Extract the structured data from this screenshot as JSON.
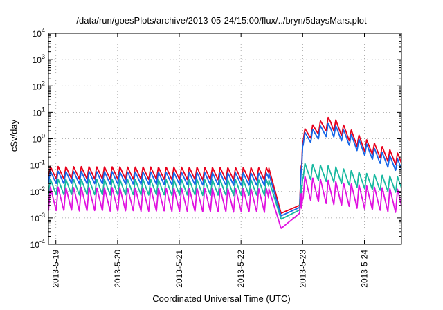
{
  "chart_data": {
    "type": "line",
    "title": "/data/run/goesPlots/archive/2013-05-24/15:00/flux/../bryn/5daysMars.plot",
    "xlabel": "Coordinated Universal Time (UTC)",
    "ylabel": "cSv/day",
    "yscale": "log",
    "ylim": [
      0.0001,
      10000
    ],
    "xlim_days": [
      -0.12,
      5.6
    ],
    "grid": true,
    "y_ticks": [
      {
        "base": "10",
        "exp": "-4",
        "value": 0.0001
      },
      {
        "base": "10",
        "exp": "-3",
        "value": 0.001
      },
      {
        "base": "10",
        "exp": "-2",
        "value": 0.01
      },
      {
        "base": "10",
        "exp": "-1",
        "value": 0.1
      },
      {
        "base": "10",
        "exp": "0",
        "value": 1
      },
      {
        "base": "10",
        "exp": "1",
        "value": 10
      },
      {
        "base": "10",
        "exp": "2",
        "value": 100
      },
      {
        "base": "10",
        "exp": "3",
        "value": 1000
      },
      {
        "base": "10",
        "exp": "4",
        "value": 10000
      }
    ],
    "x_ticks": [
      {
        "label": "2013-5-19",
        "day": 0
      },
      {
        "label": "2013-5-20",
        "day": 1
      },
      {
        "label": "2013-5-21",
        "day": 2
      },
      {
        "label": "2013-5-22",
        "day": 3
      },
      {
        "label": "2013-5-23",
        "day": 4
      },
      {
        "label": "2013-5-24",
        "day": 5
      }
    ],
    "series": [
      {
        "color": "#e8001c",
        "base": [
          [
            -0.12,
            0.09
          ],
          [
            3.45,
            0.08
          ],
          [
            3.65,
            0.0015
          ],
          [
            3.95,
            0.003
          ],
          [
            4.0,
            2.2
          ],
          [
            4.3,
            5
          ],
          [
            4.45,
            7
          ],
          [
            4.7,
            3
          ],
          [
            5.0,
            1.0
          ],
          [
            5.3,
            0.5
          ],
          [
            5.6,
            0.25
          ]
        ],
        "depth": 3.0
      },
      {
        "color": "#1566e8",
        "base": [
          [
            -0.12,
            0.06
          ],
          [
            3.45,
            0.05
          ],
          [
            3.65,
            0.0012
          ],
          [
            3.95,
            0.0025
          ],
          [
            4.0,
            1.6
          ],
          [
            4.3,
            3.2
          ],
          [
            4.45,
            4
          ],
          [
            4.7,
            2
          ],
          [
            5.0,
            0.7
          ],
          [
            5.3,
            0.3
          ],
          [
            5.6,
            0.15
          ]
        ],
        "depth": 3.0
      },
      {
        "color": "#17b8a0",
        "base": [
          [
            -0.12,
            0.03
          ],
          [
            3.45,
            0.028
          ],
          [
            3.65,
            0.0009
          ],
          [
            3.95,
            0.002
          ],
          [
            4.0,
            0.12
          ],
          [
            4.5,
            0.09
          ],
          [
            5.0,
            0.05
          ],
          [
            5.6,
            0.035
          ]
        ],
        "depth": 4.0
      },
      {
        "color": "#e010e0",
        "base": [
          [
            -0.12,
            0.015
          ],
          [
            3.45,
            0.013
          ],
          [
            3.65,
            0.0004
          ],
          [
            3.95,
            0.0015
          ],
          [
            4.0,
            0.04
          ],
          [
            4.5,
            0.025
          ],
          [
            5.0,
            0.017
          ],
          [
            5.6,
            0.012
          ]
        ],
        "depth": 8.0
      }
    ]
  }
}
